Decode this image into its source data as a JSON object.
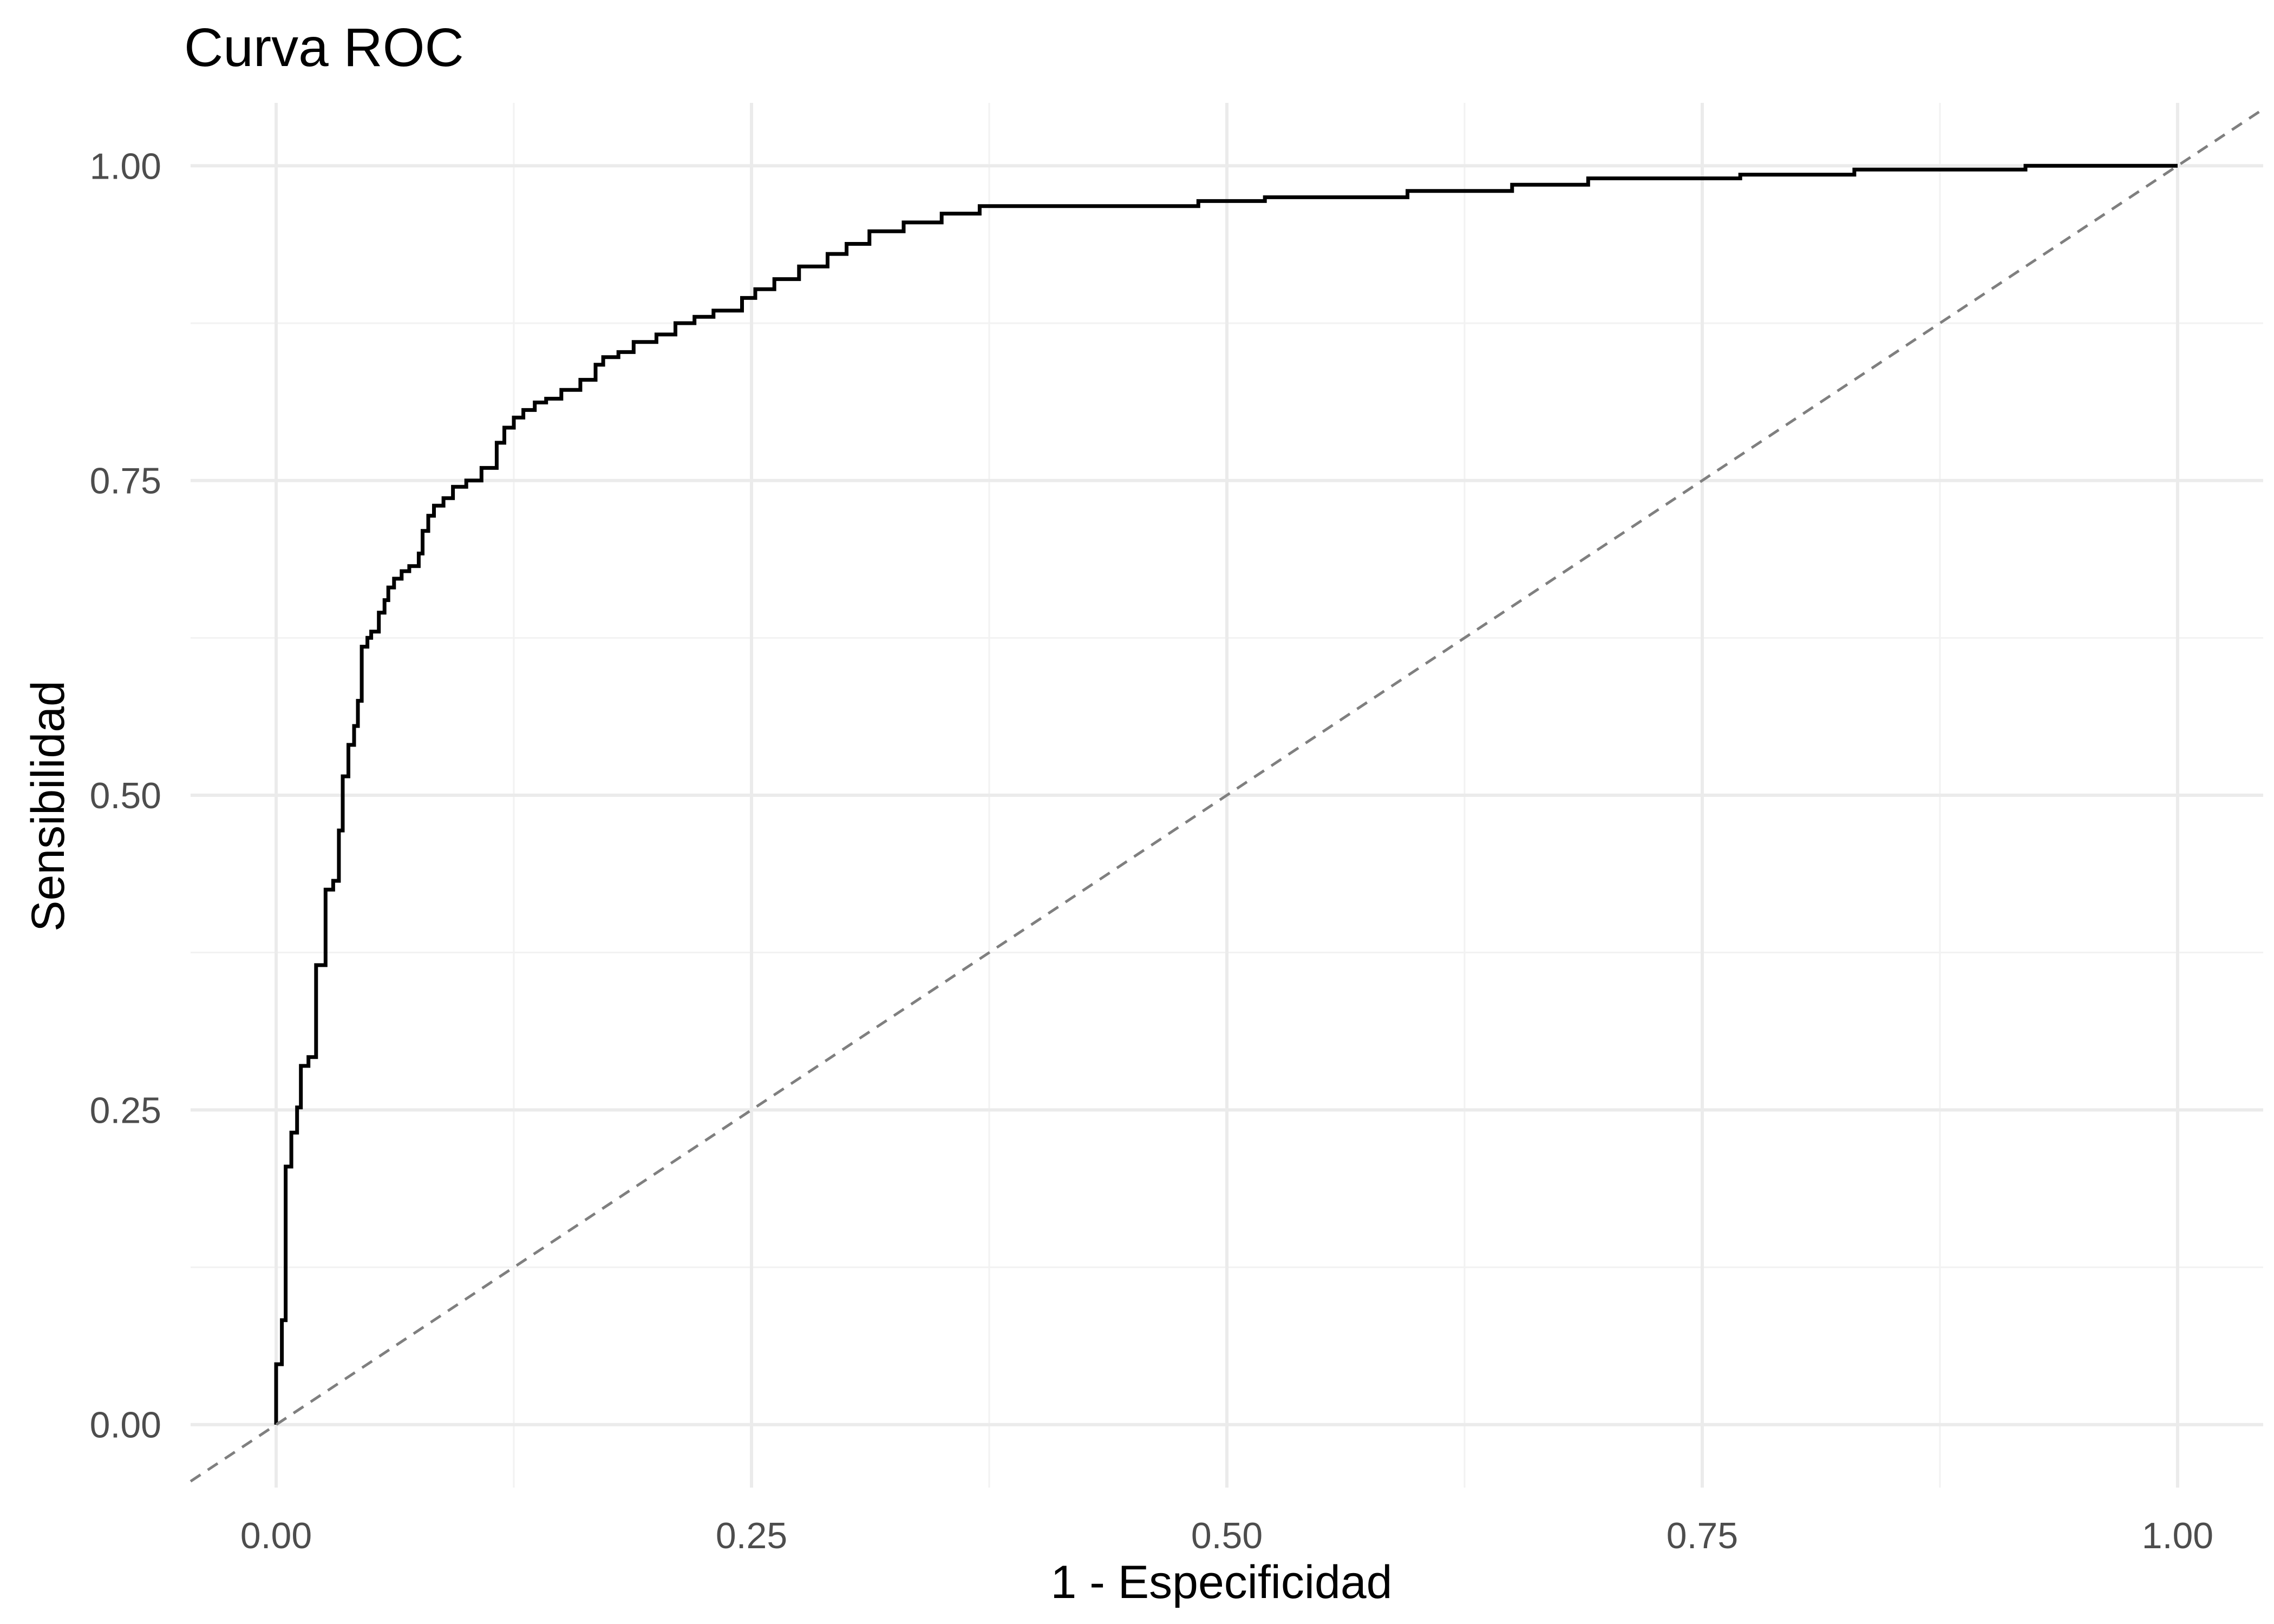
{
  "chart_data": {
    "type": "line",
    "title": "Curva ROC",
    "xlabel": "1 - Especificidad",
    "ylabel": "Sensibilidad",
    "xlim": [
      -0.045,
      1.045
    ],
    "ylim": [
      -0.05,
      1.05
    ],
    "x_ticks": [
      "0.00",
      "0.25",
      "0.50",
      "0.75",
      "1.00"
    ],
    "y_ticks": [
      "0.00",
      "0.25",
      "0.50",
      "0.75",
      "1.00"
    ],
    "grid": true,
    "legend": "none",
    "colors": {
      "roc": "#000000",
      "reference": "#7f7f7f",
      "grid": "#ebebeb"
    },
    "series": [
      {
        "style": "step",
        "x": [
          0.0,
          0.0,
          0.003,
          0.003,
          0.005,
          0.005,
          0.008,
          0.008,
          0.011,
          0.011,
          0.013,
          0.013,
          0.017,
          0.017,
          0.021,
          0.021,
          0.026,
          0.026,
          0.03,
          0.03,
          0.033,
          0.033,
          0.035,
          0.035,
          0.038,
          0.038,
          0.041,
          0.041,
          0.043,
          0.043,
          0.045,
          0.045,
          0.048,
          0.048,
          0.05,
          0.05,
          0.054,
          0.054,
          0.057,
          0.057,
          0.059,
          0.059,
          0.062,
          0.062,
          0.066,
          0.066,
          0.07,
          0.07,
          0.075,
          0.075,
          0.077,
          0.077,
          0.08,
          0.08,
          0.083,
          0.083,
          0.088,
          0.088,
          0.093,
          0.093,
          0.1,
          0.1,
          0.108,
          0.108,
          0.116,
          0.116,
          0.12,
          0.12,
          0.125,
          0.125,
          0.13,
          0.13,
          0.136,
          0.136,
          0.142,
          0.142,
          0.15,
          0.15,
          0.16,
          0.16,
          0.168,
          0.168,
          0.172,
          0.172,
          0.18,
          0.18,
          0.188,
          0.188,
          0.2,
          0.2,
          0.21,
          0.21,
          0.22,
          0.22,
          0.23,
          0.23,
          0.245,
          0.245,
          0.252,
          0.252,
          0.262,
          0.262,
          0.275,
          0.275,
          0.29,
          0.29,
          0.3,
          0.3,
          0.312,
          0.312,
          0.33,
          0.33,
          0.35,
          0.35,
          0.37,
          0.37,
          0.485,
          0.485,
          0.52,
          0.52,
          0.595,
          0.595,
          0.65,
          0.65,
          0.69,
          0.69,
          0.77,
          0.77,
          0.83,
          0.83,
          0.92,
          0.92,
          1.0
        ],
        "y": [
          0.0,
          0.048,
          0.048,
          0.083,
          0.083,
          0.205,
          0.205,
          0.232,
          0.232,
          0.252,
          0.252,
          0.285,
          0.285,
          0.292,
          0.292,
          0.365,
          0.365,
          0.425,
          0.425,
          0.432,
          0.432,
          0.472,
          0.472,
          0.515,
          0.515,
          0.54,
          0.54,
          0.555,
          0.555,
          0.575,
          0.575,
          0.618,
          0.618,
          0.625,
          0.625,
          0.63,
          0.63,
          0.645,
          0.645,
          0.655,
          0.655,
          0.665,
          0.665,
          0.672,
          0.672,
          0.678,
          0.678,
          0.682,
          0.682,
          0.692,
          0.692,
          0.71,
          0.71,
          0.722,
          0.722,
          0.73,
          0.73,
          0.736,
          0.736,
          0.745,
          0.745,
          0.75,
          0.75,
          0.76,
          0.76,
          0.78,
          0.78,
          0.792,
          0.792,
          0.8,
          0.8,
          0.806,
          0.806,
          0.812,
          0.812,
          0.815,
          0.815,
          0.822,
          0.822,
          0.83,
          0.83,
          0.842,
          0.842,
          0.848,
          0.848,
          0.852,
          0.852,
          0.86,
          0.86,
          0.866,
          0.866,
          0.875,
          0.875,
          0.88,
          0.88,
          0.885,
          0.885,
          0.895,
          0.895,
          0.902,
          0.902,
          0.91,
          0.91,
          0.92,
          0.92,
          0.93,
          0.93,
          0.938,
          0.938,
          0.948,
          0.948,
          0.955,
          0.955,
          0.962,
          0.962,
          0.968,
          0.968,
          0.972,
          0.972,
          0.975,
          0.975,
          0.98,
          0.98,
          0.985,
          0.985,
          0.99,
          0.99,
          0.993,
          0.993,
          0.997,
          0.997,
          1.0,
          1.0
        ]
      },
      {
        "style": "dashed",
        "x": [
          -0.045,
          1.045
        ],
        "y": [
          -0.045,
          1.045
        ]
      }
    ]
  }
}
